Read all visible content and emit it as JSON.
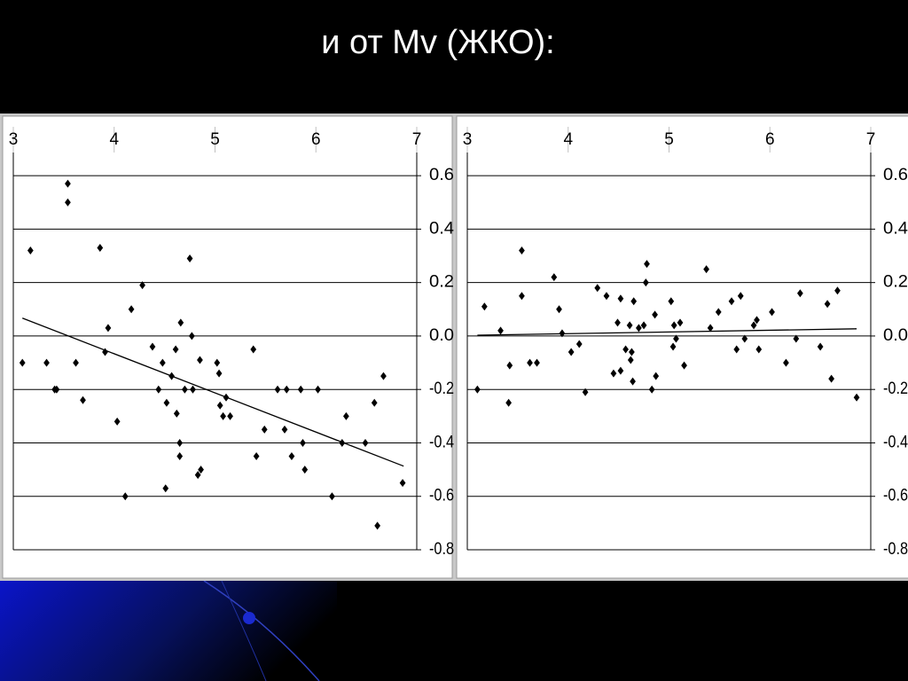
{
  "slide": {
    "title": "и от Mv (ЖКО):"
  },
  "chart_data": [
    {
      "type": "scatter",
      "color": "#000000",
      "grid": true,
      "x_axis_position": "top",
      "y_axis_position": "right",
      "xlim": [
        3,
        7
      ],
      "xticks": [
        3,
        4,
        5,
        6,
        7
      ],
      "ylim": [
        -0.8,
        0.7
      ],
      "yticks": [
        0.6,
        0.4,
        0.2,
        {
          "value": 0,
          "label": "0.0"
        },
        -0.2,
        -0.4,
        -0.6,
        -0.8
      ],
      "x": [
        3.09,
        3.17,
        3.33,
        3.41,
        3.43,
        3.54,
        3.54,
        3.62,
        3.69,
        3.86,
        3.91,
        3.94,
        4.03,
        4.11,
        4.17,
        4.28,
        4.38,
        4.44,
        4.48,
        4.51,
        4.52,
        4.57,
        4.61,
        4.62,
        4.65,
        4.65,
        4.66,
        4.7,
        4.75,
        4.77,
        4.78,
        4.83,
        4.85,
        4.86,
        5.02,
        5.04,
        5.05,
        5.08,
        5.11,
        5.15,
        5.38,
        5.41,
        5.49,
        5.62,
        5.69,
        5.71,
        5.76,
        5.85,
        5.87,
        5.89,
        6.02,
        6.16,
        6.26,
        6.3,
        6.49,
        6.58,
        6.61,
        6.67,
        6.86
      ],
      "values": [
        -0.1,
        0.32,
        -0.1,
        -0.2,
        -0.2,
        0.57,
        0.5,
        -0.1,
        -0.24,
        0.33,
        -0.06,
        0.03,
        -0.32,
        -0.6,
        0.1,
        0.19,
        -0.04,
        -0.2,
        -0.1,
        -0.57,
        -0.25,
        -0.15,
        -0.05,
        -0.29,
        -0.4,
        -0.45,
        0.05,
        -0.2,
        0.29,
        0.0,
        -0.2,
        -0.52,
        -0.09,
        -0.5,
        -0.1,
        -0.14,
        -0.26,
        -0.3,
        -0.23,
        -0.3,
        -0.05,
        -0.45,
        -0.35,
        -0.2,
        -0.35,
        -0.2,
        -0.45,
        -0.2,
        -0.4,
        -0.5,
        -0.2,
        -0.6,
        -0.4,
        -0.3,
        -0.4,
        -0.25,
        -0.71,
        -0.15,
        -0.55
      ],
      "trendline": {
        "x": [
          3.09,
          6.87
        ],
        "values": [
          0.067,
          -0.487
        ]
      }
    },
    {
      "type": "scatter",
      "color": "#000000",
      "grid": true,
      "x_axis_position": "top",
      "y_axis_position": "right",
      "xlim": [
        3,
        7
      ],
      "xticks": [
        3,
        4,
        5,
        6,
        7
      ],
      "ylim": [
        -0.8,
        0.7
      ],
      "yticks": [
        0.6,
        0.4,
        0.2,
        {
          "value": 0,
          "label": "0.0"
        },
        -0.2,
        -0.4,
        -0.6,
        -0.8
      ],
      "x": [
        3.1,
        3.17,
        3.33,
        3.42,
        3.41,
        3.54,
        3.54,
        3.62,
        3.69,
        3.86,
        3.91,
        3.94,
        4.03,
        4.11,
        4.17,
        4.29,
        4.38,
        4.45,
        4.49,
        4.52,
        4.52,
        4.57,
        4.61,
        4.62,
        4.63,
        4.64,
        4.65,
        4.7,
        4.75,
        4.77,
        4.78,
        4.83,
        4.86,
        4.87,
        5.02,
        5.04,
        5.05,
        5.07,
        5.11,
        5.15,
        5.37,
        5.41,
        5.49,
        5.62,
        5.67,
        5.71,
        5.75,
        5.84,
        5.87,
        5.89,
        6.02,
        6.16,
        6.26,
        6.3,
        6.5,
        6.57,
        6.61,
        6.67,
        6.86
      ],
      "values": [
        -0.2,
        0.11,
        0.02,
        -0.11,
        -0.25,
        0.32,
        0.15,
        -0.1,
        -0.1,
        0.22,
        0.1,
        0.01,
        -0.06,
        -0.03,
        -0.21,
        0.18,
        0.15,
        -0.14,
        0.05,
        -0.13,
        0.14,
        -0.05,
        0.04,
        -0.09,
        -0.06,
        -0.17,
        0.13,
        0.03,
        0.04,
        0.2,
        0.27,
        -0.2,
        0.08,
        -0.15,
        0.13,
        -0.04,
        0.04,
        -0.01,
        0.05,
        -0.11,
        0.25,
        0.03,
        0.09,
        0.13,
        -0.05,
        0.15,
        -0.01,
        0.04,
        0.06,
        -0.05,
        0.09,
        -0.1,
        -0.01,
        0.16,
        -0.04,
        0.12,
        -0.16,
        0.17,
        -0.23
      ],
      "trendline": {
        "x": [
          3.1,
          6.86
        ],
        "values": [
          0.003,
          0.027
        ]
      }
    }
  ]
}
